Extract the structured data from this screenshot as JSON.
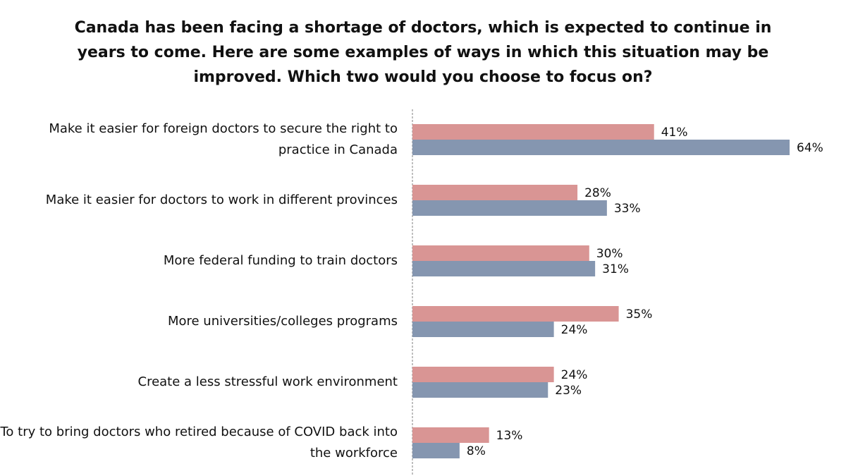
{
  "colors": {
    "series_a": "#d99594",
    "series_b": "#8596b0",
    "axis": "#aaaaaa",
    "text": "#111111"
  },
  "chart_data": {
    "type": "bar",
    "orientation": "horizontal",
    "title": "Canada has been facing a shortage of doctors, which is expected to continue in years to come. Here are some examples of ways in which this situation may be improved. Which two would you choose to focus on?",
    "categories": [
      "Make it easier for foreign doctors to secure the right to practice in Canada",
      "Make it easier for doctors to work in different provinces",
      "More federal funding to train doctors",
      "More universities/colleges programs",
      "Create a less stressful work environment",
      "To try to bring doctors who retired because of COVID back into the workforce"
    ],
    "series": [
      {
        "color": "#d99594",
        "values": [
          41,
          28,
          30,
          35,
          24,
          13
        ],
        "labels": [
          "41%",
          "28%",
          "30%",
          "35%",
          "24%",
          "13%"
        ]
      },
      {
        "color": "#8596b0",
        "values": [
          64,
          33,
          31,
          24,
          23,
          8
        ],
        "labels": [
          "64%",
          "33%",
          "31%",
          "24%",
          "23%",
          "8%"
        ]
      }
    ],
    "xlim": [
      0,
      64
    ],
    "grid": false,
    "legend": "none",
    "axis_style": "dashed vertical baseline"
  }
}
